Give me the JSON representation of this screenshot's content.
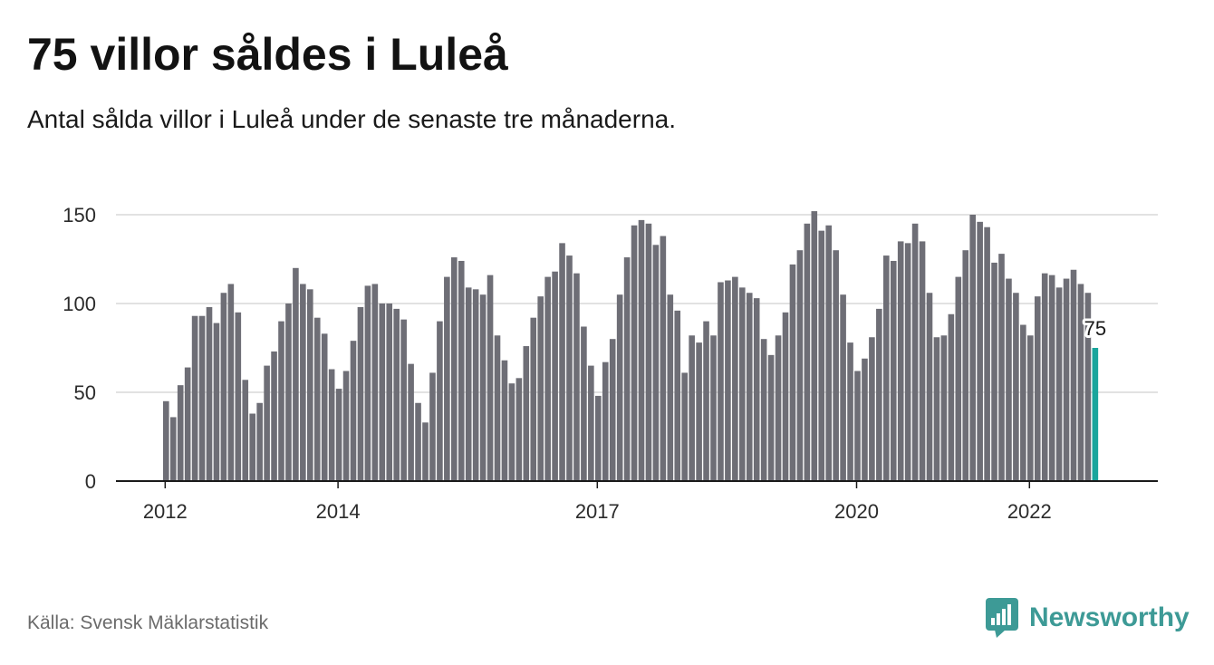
{
  "title": "75 villor såldes i Luleå",
  "subtitle": "Antal sålda villor i Luleå under de senaste tre månaderna.",
  "source": "Källa: Svensk Mäklarstatistik",
  "brand": {
    "name": "Newsworthy",
    "icon": "bar-chart-speech-bubble-icon"
  },
  "colors": {
    "bar": "#6e6e76",
    "highlight": "#1aa59c",
    "grid": "#d9d9d9",
    "axis": "#1a1a1a",
    "brand": "#3d9a96"
  },
  "chart_data": {
    "type": "bar",
    "title": "75 villor såldes i Luleå",
    "xlabel": "",
    "ylabel": "",
    "ylim": [
      0,
      150
    ],
    "yticks": [
      0,
      50,
      100,
      150
    ],
    "grid": true,
    "x_tick_labels": [
      "2012",
      "2014",
      "2017",
      "2020",
      "2022"
    ],
    "segments": [
      {
        "start_month": "2012-01",
        "values": [
          45,
          36,
          54,
          64,
          93,
          93,
          98,
          89,
          106,
          111,
          95,
          57,
          38,
          44,
          65,
          73,
          90,
          100,
          120,
          111,
          108,
          92,
          83,
          63
        ]
      },
      {
        "start_month": "2014-01",
        "values": [
          52,
          62,
          79,
          98,
          110,
          111,
          100,
          100,
          97,
          91,
          66,
          44,
          33,
          61,
          90,
          115,
          126,
          124,
          109,
          108,
          105,
          116,
          82,
          68,
          55,
          58,
          76,
          92,
          104,
          115,
          118,
          134,
          127,
          117,
          87,
          65,
          48,
          67,
          80,
          105,
          126,
          144,
          147,
          145,
          133,
          138,
          105,
          96,
          61,
          82,
          78,
          90,
          82,
          112,
          113,
          115,
          109,
          106,
          103,
          80,
          71,
          82,
          95,
          122,
          130,
          145,
          152,
          141,
          144,
          130,
          105,
          78,
          62,
          69,
          81,
          97,
          127,
          124,
          135,
          134,
          145,
          135,
          106,
          81,
          82,
          94,
          115,
          130,
          150,
          146,
          143,
          123,
          128,
          114,
          106,
          88,
          82,
          104,
          117,
          116,
          109,
          114,
          119,
          111,
          106,
          75
        ]
      }
    ],
    "highlight": {
      "label": "75",
      "value": 75
    }
  }
}
